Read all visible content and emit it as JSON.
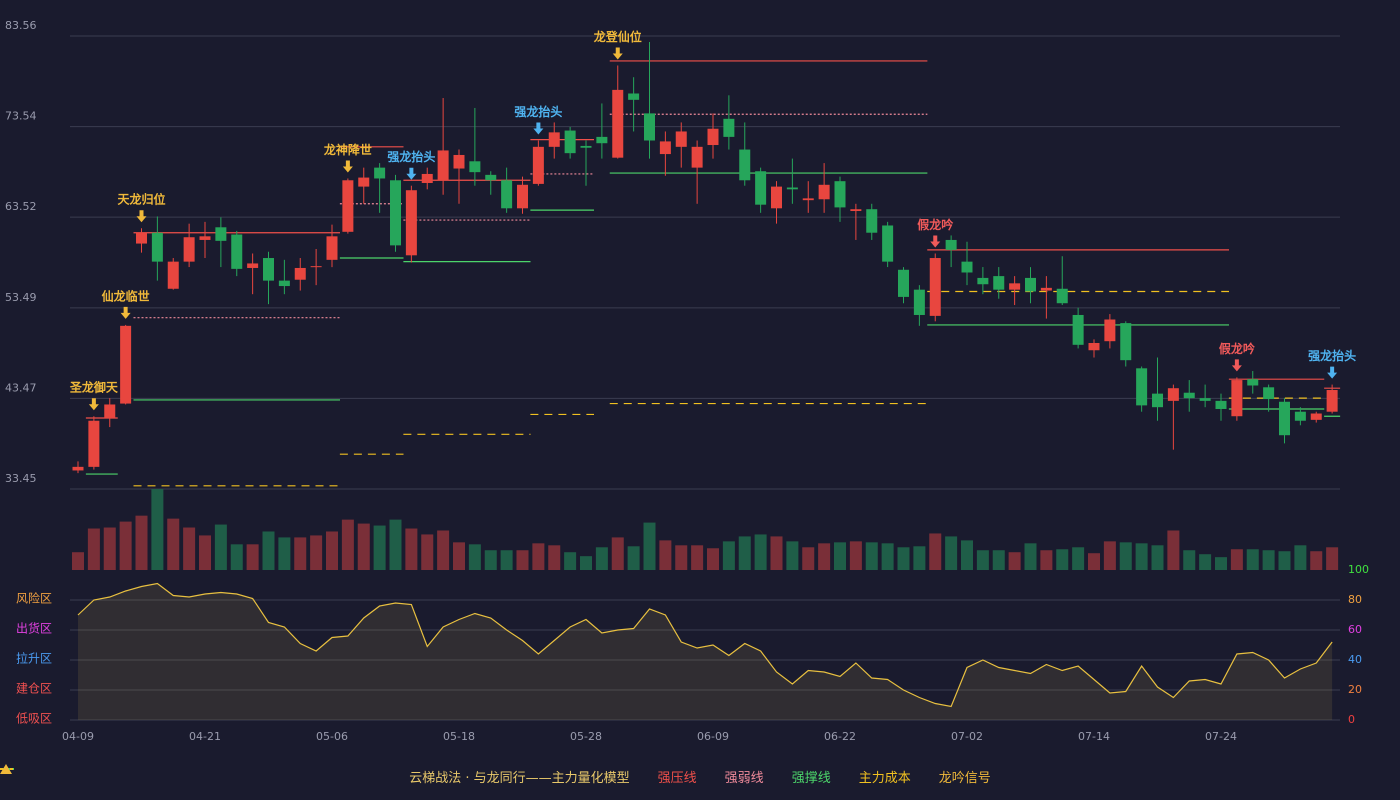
{
  "chart_data": {
    "type": "candlestick",
    "ylim": [
      33.45,
      83.56
    ],
    "yticks": [
      33.45,
      43.47,
      53.49,
      63.52,
      73.54,
      83.56
    ],
    "categories": [
      "04-09",
      null,
      null,
      null,
      null,
      null,
      null,
      null,
      "04-21",
      null,
      null,
      null,
      null,
      null,
      null,
      null,
      "05-06",
      null,
      null,
      null,
      null,
      null,
      null,
      null,
      "05-18",
      null,
      null,
      null,
      null,
      null,
      null,
      null,
      "05-28",
      null,
      null,
      null,
      null,
      null,
      null,
      null,
      "06-09",
      null,
      null,
      null,
      null,
      null,
      null,
      null,
      "06-22",
      null,
      null,
      null,
      null,
      null,
      null,
      null,
      "07-02",
      null,
      null,
      null,
      null,
      null,
      null,
      null,
      "07-14",
      null,
      null,
      null,
      null,
      null,
      null,
      null,
      "07-24",
      null,
      null,
      null,
      null,
      null,
      null,
      null
    ],
    "up_color": "#e8463f",
    "down_color": "#26a65b",
    "ohlc": [
      [
        35.5,
        36.5,
        35.2,
        35.9
      ],
      [
        35.9,
        41.5,
        35.6,
        41.0
      ],
      [
        41.3,
        43.5,
        40.3,
        42.8
      ],
      [
        42.9,
        51.6,
        42.8,
        51.5
      ],
      [
        60.6,
        62.3,
        59.6,
        61.8
      ],
      [
        61.8,
        63.6,
        56.5,
        58.6
      ],
      [
        55.6,
        59.0,
        55.5,
        58.6
      ],
      [
        58.6,
        62.8,
        58.0,
        61.3
      ],
      [
        61.0,
        63.0,
        59.0,
        61.4
      ],
      [
        62.4,
        63.5,
        58.0,
        60.9
      ],
      [
        61.6,
        62.0,
        57.0,
        57.8
      ],
      [
        57.9,
        59.5,
        55.0,
        58.4
      ],
      [
        59.0,
        59.7,
        53.9,
        56.5
      ],
      [
        56.5,
        58.8,
        55.0,
        55.9
      ],
      [
        56.6,
        59.0,
        55.4,
        57.9
      ],
      [
        58.0,
        60.0,
        56.0,
        58.1
      ],
      [
        58.8,
        62.7,
        58.0,
        61.4
      ],
      [
        61.9,
        67.8,
        61.7,
        67.6
      ],
      [
        66.9,
        69.0,
        65.0,
        67.9
      ],
      [
        69.0,
        69.5,
        64.0,
        67.8
      ],
      [
        67.6,
        68.2,
        59.7,
        60.4
      ],
      [
        59.3,
        67.0,
        58.5,
        66.5
      ],
      [
        67.3,
        69.0,
        66.6,
        68.3
      ],
      [
        67.6,
        76.7,
        66.0,
        70.9
      ],
      [
        68.9,
        71.0,
        65.0,
        70.4
      ],
      [
        69.7,
        75.6,
        67.0,
        68.5
      ],
      [
        68.2,
        68.6,
        66.0,
        67.6
      ],
      [
        67.6,
        69.0,
        64.0,
        64.5
      ],
      [
        64.5,
        68.0,
        63.9,
        67.1
      ],
      [
        67.2,
        72.0,
        67.0,
        71.3
      ],
      [
        71.3,
        74.0,
        70.0,
        72.9
      ],
      [
        73.1,
        73.5,
        70.0,
        70.6
      ],
      [
        71.4,
        72.0,
        67.0,
        71.2
      ],
      [
        72.4,
        76.1,
        70.0,
        71.7
      ],
      [
        70.1,
        80.3,
        70.0,
        77.6
      ],
      [
        77.2,
        79.0,
        73.0,
        76.5
      ],
      [
        75.0,
        82.9,
        70.0,
        72.0
      ],
      [
        70.5,
        73.0,
        68.1,
        71.9
      ],
      [
        71.3,
        74.0,
        69.0,
        73.0
      ],
      [
        69.0,
        72.0,
        65.0,
        71.3
      ],
      [
        71.5,
        75.0,
        70.0,
        73.3
      ],
      [
        74.4,
        77.0,
        71.0,
        72.4
      ],
      [
        71.0,
        74.0,
        67.0,
        67.6
      ],
      [
        68.6,
        69.0,
        64.0,
        64.9
      ],
      [
        64.5,
        67.5,
        62.8,
        66.9
      ],
      [
        66.8,
        70.0,
        65.0,
        66.6
      ],
      [
        65.4,
        67.5,
        64.0,
        65.6
      ],
      [
        65.5,
        69.5,
        64.0,
        67.1
      ],
      [
        67.5,
        68.0,
        63.0,
        64.6
      ],
      [
        64.2,
        65.0,
        61.0,
        64.4
      ],
      [
        64.4,
        65.0,
        61.0,
        61.8
      ],
      [
        62.6,
        63.0,
        58.0,
        58.6
      ],
      [
        57.7,
        58.0,
        54.0,
        54.7
      ],
      [
        55.5,
        56.0,
        51.5,
        52.7
      ],
      [
        52.6,
        59.5,
        52.0,
        59.0
      ],
      [
        61.0,
        61.5,
        58.0,
        59.9
      ],
      [
        58.6,
        60.8,
        56.0,
        57.4
      ],
      [
        56.8,
        58.0,
        55.0,
        56.1
      ],
      [
        57.0,
        58.0,
        54.5,
        55.5
      ],
      [
        55.5,
        57.0,
        53.8,
        56.2
      ],
      [
        56.8,
        58.0,
        54.0,
        55.3
      ],
      [
        55.4,
        57.0,
        52.3,
        55.7
      ],
      [
        55.6,
        59.2,
        53.8,
        54.0
      ],
      [
        52.7,
        53.5,
        49.0,
        49.4
      ],
      [
        48.8,
        50.0,
        48.0,
        49.6
      ],
      [
        49.8,
        52.8,
        49.0,
        52.2
      ],
      [
        51.8,
        52.0,
        47.0,
        47.7
      ],
      [
        46.8,
        47.0,
        42.0,
        42.7
      ],
      [
        44.0,
        48.0,
        41.0,
        42.5
      ],
      [
        43.2,
        45.0,
        37.8,
        44.6
      ],
      [
        44.1,
        45.5,
        42.0,
        43.5
      ],
      [
        43.5,
        45.0,
        42.5,
        43.2
      ],
      [
        43.2,
        44.0,
        41.0,
        42.3
      ],
      [
        41.5,
        45.8,
        41.0,
        45.5
      ],
      [
        45.6,
        46.5,
        44.0,
        44.9
      ],
      [
        44.7,
        45.0,
        42.0,
        43.4
      ],
      [
        43.1,
        43.5,
        38.5,
        39.4
      ],
      [
        42.0,
        42.5,
        40.5,
        41.0
      ],
      [
        41.1,
        42.0,
        40.8,
        41.8
      ],
      [
        42.0,
        45.0,
        41.8,
        44.4
      ]
    ],
    "volume": [
      18,
      42,
      43,
      49,
      55,
      82,
      52,
      43,
      35,
      46,
      26,
      26,
      39,
      33,
      33,
      35,
      39,
      51,
      47,
      45,
      51,
      42,
      36,
      40,
      28,
      26,
      20,
      20,
      20,
      27,
      25,
      18,
      14,
      23,
      33,
      24,
      48,
      30,
      25,
      25,
      22,
      29,
      34,
      36,
      34,
      29,
      23,
      27,
      28,
      29,
      28,
      27,
      23,
      24,
      37,
      34,
      30,
      20,
      20,
      18,
      27,
      20,
      21,
      23,
      17,
      29,
      28,
      27,
      25,
      40,
      20,
      16,
      13,
      21,
      21,
      20,
      19,
      25,
      19,
      23
    ],
    "levels": [
      {
        "name": "强压线",
        "color": "#f0504a",
        "dash": "none",
        "segments": [
          [
            1,
            2,
            41.3
          ],
          [
            4,
            16,
            61.8
          ],
          [
            17,
            20,
            71.3
          ],
          [
            21,
            28,
            67.6
          ],
          [
            29,
            32,
            72.1
          ],
          [
            34,
            53,
            80.8
          ],
          [
            54,
            72,
            59.9
          ],
          [
            73,
            78,
            45.6
          ],
          [
            79,
            79,
            44.6
          ]
        ]
      },
      {
        "name": "强弱线",
        "color": "#f08a9a",
        "dash": "2 2",
        "segments": [
          [
            4,
            16,
            52.4
          ],
          [
            17,
            20,
            65.0
          ],
          [
            21,
            28,
            63.2
          ],
          [
            29,
            32,
            68.3
          ],
          [
            34,
            53,
            74.9
          ]
        ]
      },
      {
        "name": "强撑线",
        "color": "#4cd46a",
        "dash": "none",
        "segments": [
          [
            1,
            2,
            35.1
          ],
          [
            4,
            16,
            43.3
          ],
          [
            17,
            20,
            59.0
          ],
          [
            21,
            28,
            58.6
          ],
          [
            29,
            32,
            64.3
          ],
          [
            34,
            53,
            68.4
          ],
          [
            54,
            72,
            51.6
          ],
          [
            73,
            78,
            42.3
          ],
          [
            79,
            79,
            41.5
          ]
        ]
      },
      {
        "name": "主力成本",
        "color": "#f0c020",
        "dash": "8 6",
        "segments": [
          [
            4,
            16,
            33.8
          ],
          [
            17,
            20,
            37.3
          ],
          [
            21,
            28,
            39.5
          ],
          [
            29,
            32,
            41.7
          ],
          [
            34,
            53,
            42.9
          ],
          [
            54,
            72,
            55.3
          ],
          [
            73,
            78,
            43.5
          ]
        ]
      }
    ],
    "signals_name": "龙吟信号",
    "signals_color": "#f0b93a",
    "signals": [
      {
        "label": "圣龙御天",
        "at": 1,
        "color": "#f0b93a"
      },
      {
        "label": "仙龙临世",
        "at": 3,
        "color": "#f0b93a"
      },
      {
        "label": "天龙归位",
        "at": 4,
        "color": "#f0b93a"
      },
      {
        "label": "龙神降世",
        "at": 17,
        "color": "#f0b93a"
      },
      {
        "label": "强龙抬头",
        "at": 21,
        "color": "#4fb3f0"
      },
      {
        "label": "强龙抬头",
        "at": 29,
        "color": "#4fb3f0"
      },
      {
        "label": "龙登仙位",
        "at": 34,
        "color": "#f0b93a"
      },
      {
        "label": "假龙吟",
        "at": 54,
        "color": "#f05a5a"
      },
      {
        "label": "假龙吟",
        "at": 73,
        "color": "#f05a5a"
      },
      {
        "label": "强龙抬头",
        "at": 79,
        "color": "#4fb3f0"
      }
    ],
    "indicator": {
      "color": "#e8c040",
      "ylim": [
        0,
        100
      ],
      "yticks": [
        0,
        20,
        40,
        60,
        80,
        100
      ],
      "ytick_colors": [
        "#f04040",
        "#f08040",
        "#4a9af0",
        "#e040e0",
        "#f0a040",
        "#40e040"
      ],
      "values": [
        70,
        80,
        82,
        86,
        89,
        91,
        83,
        82,
        84,
        85,
        84,
        81,
        65,
        62,
        51,
        46,
        55,
        56,
        68,
        76,
        78,
        77,
        49,
        62,
        67,
        71,
        68,
        60,
        53,
        44,
        53,
        62,
        67,
        58,
        60,
        61,
        74,
        70,
        52,
        48,
        50,
        43,
        51,
        46,
        32,
        24,
        33,
        32,
        29,
        38,
        28,
        27,
        20,
        15,
        11,
        9,
        35,
        40,
        35,
        33,
        31,
        37,
        33,
        36,
        27,
        18,
        19,
        36,
        22,
        15,
        26,
        27,
        24,
        44,
        45,
        40,
        28,
        34,
        38,
        52
      ],
      "zones": [
        {
          "label": "风险区",
          "value": 80,
          "color": "#f0a040"
        },
        {
          "label": "出货区",
          "value": 60,
          "color": "#e040e0"
        },
        {
          "label": "拉升区",
          "value": 40,
          "color": "#4a9af0"
        },
        {
          "label": "建仓区",
          "value": 20,
          "color": "#f05050"
        },
        {
          "label": "低吸区",
          "value": 0,
          "color": "#f05050"
        }
      ]
    },
    "model_name": "云梯战法 · 与龙同行——主力量化模型"
  }
}
